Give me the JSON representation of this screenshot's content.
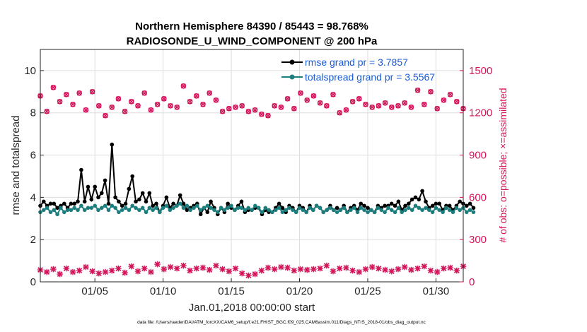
{
  "chart_data": {
    "type": "line",
    "title": [
      "Northern Hemisphere 84390 / 85443 = 98.768%",
      "RADIOSONDE_U_WIND_COMPONENT @ 200 hPa"
    ],
    "xlabel": "Jan.01,2018 00:00:00 start",
    "ylabel_left": "rmse and totalspread",
    "ylabel_right": "# of obs: o=possible; ×=assimilated",
    "footer": "data file: /Users/raeder/DAI/ATM_forcXX/CAM6_setup/f.e21.FHIST_BGC.f09_025.CAM6assim.011/Diags_NTrS_2018-01/obs_diag_output.nc",
    "xlim": [
      1,
      32
    ],
    "ylim_left": [
      0,
      11
    ],
    "ylim_right": [
      0,
      1650
    ],
    "xticks": [
      5,
      10,
      15,
      20,
      25,
      30
    ],
    "xtick_labels": [
      "01/05",
      "01/10",
      "01/15",
      "01/20",
      "01/25",
      "01/30"
    ],
    "yticks_left": [
      0,
      2,
      4,
      6,
      8,
      10
    ],
    "yticks_right": [
      0,
      300,
      600,
      900,
      1200,
      1500
    ],
    "grid": true,
    "legend_position": "top-right",
    "step_days": 0.25,
    "start_day": 1.0,
    "series": [
      {
        "name": "rmse grand pr = 3.7857",
        "color": "#000000",
        "axis": "left",
        "values": [
          3.6,
          3.8,
          3.6,
          3.7,
          3.7,
          3.5,
          3.6,
          3.7,
          3.5,
          3.7,
          3.7,
          3.8,
          5.3,
          3.8,
          4.5,
          3.9,
          4.5,
          4.0,
          4.2,
          4.8,
          3.7,
          6.5,
          4.0,
          3.8,
          3.6,
          3.7,
          4.4,
          5.0,
          3.8,
          3.9,
          4.2,
          3.8,
          4.2,
          3.6,
          3.7,
          3.3,
          3.6,
          4.0,
          3.5,
          3.7,
          3.6,
          4.1,
          3.7,
          3.4,
          3.5,
          3.6,
          3.7,
          3.2,
          3.5,
          3.3,
          3.8,
          3.5,
          3.2,
          3.5,
          3.3,
          3.7,
          3.5,
          3.4,
          3.6,
          3.8,
          3.3,
          3.4,
          3.4,
          3.5,
          3.5,
          3.2,
          3.4,
          3.3,
          3.3,
          3.5,
          3.7,
          3.5,
          3.3,
          3.6,
          3.5,
          3.3,
          3.6,
          3.5,
          3.3,
          3.6,
          3.4,
          3.6,
          3.5,
          3.3,
          3.4,
          3.6,
          3.4,
          3.5,
          3.4,
          3.6,
          3.3,
          3.5,
          3.6,
          3.4,
          3.7,
          3.6,
          3.5,
          3.4,
          3.3,
          3.6,
          3.5,
          3.6,
          3.6,
          3.7,
          3.6,
          3.8,
          3.4,
          3.6,
          3.7,
          3.9,
          4.0,
          3.9,
          4.3,
          3.8,
          3.5,
          3.6,
          3.7,
          3.7,
          3.4,
          3.6,
          3.6,
          3.4,
          3.6,
          3.8,
          3.7,
          3.6,
          3.7,
          3.5
        ]
      },
      {
        "name": "totalspread grand pr = 3.5567",
        "color": "#1c7e7e",
        "axis": "left",
        "values": [
          3.3,
          3.4,
          3.5,
          3.3,
          3.4,
          3.2,
          3.5,
          3.3,
          3.4,
          3.4,
          3.5,
          3.4,
          3.6,
          3.4,
          3.5,
          3.5,
          3.6,
          3.4,
          3.5,
          3.6,
          3.4,
          3.6,
          3.5,
          3.3,
          3.4,
          3.5,
          3.4,
          3.6,
          3.5,
          3.4,
          3.5,
          3.3,
          3.5,
          3.4,
          3.5,
          3.3,
          3.5,
          3.6,
          3.4,
          3.5,
          3.6,
          3.7,
          3.5,
          3.6,
          3.4,
          3.5,
          3.6,
          3.4,
          3.5,
          3.6,
          3.5,
          3.4,
          3.3,
          3.5,
          3.4,
          3.5,
          3.6,
          3.4,
          3.5,
          3.5,
          3.4,
          3.5,
          3.4,
          3.6,
          3.5,
          3.3,
          3.5,
          3.4,
          3.3,
          3.4,
          3.5,
          3.3,
          3.4,
          3.5,
          3.4,
          3.3,
          3.5,
          3.4,
          3.3,
          3.5,
          3.4,
          3.6,
          3.5,
          3.3,
          3.4,
          3.5,
          3.4,
          3.3,
          3.4,
          3.5,
          3.3,
          3.4,
          3.5,
          3.3,
          3.5,
          3.4,
          3.3,
          3.4,
          3.3,
          3.5,
          3.4,
          3.3,
          3.5,
          3.4,
          3.3,
          3.5,
          3.3,
          3.4,
          3.5,
          3.4,
          3.6,
          3.5,
          3.4,
          3.5,
          3.4,
          3.3,
          3.5,
          3.4,
          3.3,
          3.5,
          3.4,
          3.3,
          3.5,
          3.4,
          3.5,
          3.3,
          3.4,
          3.3
        ]
      },
      {
        "name": "possible obs",
        "color": "#d4145a",
        "axis": "right",
        "marker": "o",
        "values": [
          1320,
          1210,
          1380,
          1280,
          1330,
          1260,
          1340,
          1220,
          1350,
          1250,
          1180,
          1240,
          1300,
          1210,
          1280,
          1250,
          1340,
          1220,
          1260,
          1300,
          1250,
          1240,
          1390,
          1280,
          1320,
          1260,
          1340,
          1290,
          1210,
          1230,
          1240,
          1250,
          1210,
          1220,
          1190,
          1180,
          1250,
          1240,
          1300,
          1230,
          1340,
          1290,
          1320,
          1270,
          1250,
          1330,
          1200,
          1220,
          1280,
          1300,
          1260,
          1240,
          1250,
          1270,
          1240,
          1250,
          1270,
          1240,
          1360,
          1260,
          1350,
          1230,
          1290,
          1330,
          1280,
          1230
        ]
      },
      {
        "name": "assimilated obs",
        "color": "#d4145a",
        "axis": "right",
        "marker": "x",
        "values": [
          85,
          70,
          90,
          55,
          95,
          70,
          80,
          105,
          75,
          60,
          70,
          80,
          95,
          65,
          110,
          75,
          95,
          70,
          125,
          90,
          105,
          95,
          115,
          80,
          95,
          100,
          85,
          115,
          90,
          75,
          95,
          60,
          45,
          55,
          80,
          100,
          90,
          105,
          100,
          80,
          90,
          85,
          90,
          95,
          115,
          75,
          95,
          100,
          80,
          70,
          90,
          105,
          95,
          85,
          75,
          90,
          105,
          85,
          95,
          110,
          80,
          70,
          95,
          100,
          80,
          110
        ]
      }
    ]
  }
}
